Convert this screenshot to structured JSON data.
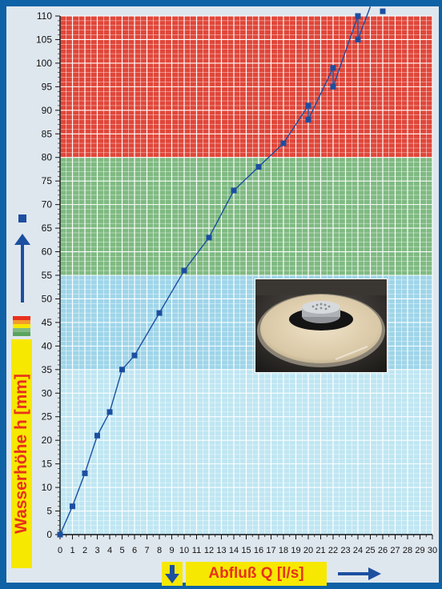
{
  "chart_data": {
    "type": "scatter",
    "title": "",
    "xlabel": "Abfluß Q [l/s]",
    "ylabel": "Wasserhöhe h [mm]",
    "xlim": [
      0,
      30
    ],
    "ylim": [
      0,
      110
    ],
    "grid": true,
    "x_ticks": [
      "0",
      "1",
      "2",
      "3",
      "4",
      "5",
      "6",
      "7",
      "8",
      "9",
      "10",
      "11",
      "12",
      "13",
      "14",
      "15",
      "16",
      "17",
      "18",
      "19",
      "20",
      "21",
      "22",
      "23",
      "24",
      "25",
      "26",
      "27",
      "28",
      "29",
      "30"
    ],
    "y_ticks": [
      "0",
      "5",
      "10",
      "15",
      "20",
      "25",
      "30",
      "35",
      "40",
      "45",
      "50",
      "55",
      "60",
      "65",
      "70",
      "75",
      "80",
      "85",
      "90",
      "95",
      "100",
      "105",
      "110"
    ],
    "zones": [
      {
        "from": 0,
        "to": 35,
        "color": "#bfe6f2"
      },
      {
        "from": 35,
        "to": 55,
        "color": "#9fd5e9"
      },
      {
        "from": 55,
        "to": 80,
        "color": "#7fba82"
      },
      {
        "from": 80,
        "to": 110,
        "color": "#e0473a"
      }
    ],
    "series": [
      {
        "type": "line",
        "color": "#1c4fa0",
        "points": [
          [
            0,
            0
          ],
          [
            1,
            6
          ],
          [
            2,
            13
          ],
          [
            3,
            21
          ],
          [
            4,
            26
          ],
          [
            5,
            35
          ],
          [
            6,
            38
          ],
          [
            8,
            47
          ],
          [
            10,
            56
          ],
          [
            12,
            63
          ],
          [
            14,
            73
          ],
          [
            16,
            78
          ],
          [
            18,
            83
          ],
          [
            20,
            91
          ],
          [
            20,
            88
          ],
          [
            22,
            99
          ],
          [
            22,
            95
          ],
          [
            24,
            110
          ],
          [
            24,
            105
          ],
          [
            25,
            112
          ]
        ]
      },
      {
        "type": "scatter",
        "color": "#1c4fa0",
        "points": [
          [
            0,
            0
          ],
          [
            1,
            6
          ],
          [
            2,
            13
          ],
          [
            3,
            21
          ],
          [
            4,
            26
          ],
          [
            5,
            35
          ],
          [
            6,
            38
          ],
          [
            8,
            47
          ],
          [
            10,
            56
          ],
          [
            12,
            63
          ],
          [
            14,
            73
          ],
          [
            16,
            78
          ],
          [
            18,
            83
          ],
          [
            20,
            91
          ],
          [
            20,
            88
          ],
          [
            22,
            99
          ],
          [
            22,
            95
          ],
          [
            24,
            110
          ],
          [
            24,
            105
          ],
          [
            26,
            111
          ]
        ]
      }
    ]
  },
  "colors": {
    "frame": "#0f62a6",
    "series": "#1c4fa0",
    "label_text": "#e8311c",
    "label_bg": "#f6e800"
  },
  "legend_zone_colors": [
    "#e8311c",
    "#f39b2c",
    "#f6e800",
    "#7fba82",
    "#5aa45e"
  ],
  "icons": {
    "y_arrow": "arrow-up-icon",
    "x_arrow": "arrow-right-icon",
    "down_marker": "arrow-down-icon",
    "photo": "drain-photo"
  }
}
